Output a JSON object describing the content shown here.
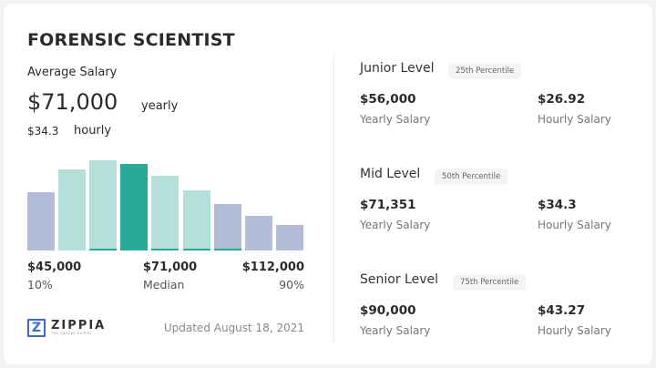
{
  "title": "FORENSIC SCIENTIST",
  "average_label": "Average Salary",
  "average_yearly": "$71,000",
  "yearly_label": "yearly",
  "average_hourly": "$34.3",
  "hourly_label": "hourly",
  "colors": {
    "low_high": "#b4bdd8",
    "mid": "#b5e0da",
    "median": "#2aa898"
  },
  "histogram": {
    "relative_heights": [
      64,
      89,
      99,
      95,
      82,
      66,
      51,
      38,
      28
    ],
    "bar_colors": [
      "low_high",
      "mid",
      "mid",
      "median",
      "mid",
      "mid",
      "low_high",
      "low_high",
      "low_high"
    ],
    "underline": [
      false,
      false,
      true,
      false,
      true,
      true,
      true,
      false,
      false
    ]
  },
  "range": {
    "low": "$45,000",
    "low_label": "10%",
    "median": "$71,000",
    "median_label": "Median",
    "high": "$112,000",
    "high_label": "90%"
  },
  "brand": {
    "name": "ZIPPIA",
    "tagline": "THE CAREER EXPERT"
  },
  "updated": "Updated August 18, 2021",
  "levels": [
    {
      "name": "Junior Level",
      "badge": "25th Percentile",
      "yearly": "$56,000",
      "yearly_label": "Yearly Salary",
      "hourly": "$26.92",
      "hourly_label": "Hourly Salary"
    },
    {
      "name": "Mid Level",
      "badge": "50th Percentile",
      "yearly": "$71,351",
      "yearly_label": "Yearly Salary",
      "hourly": "$34.3",
      "hourly_label": "Hourly Salary"
    },
    {
      "name": "Senior Level",
      "badge": "75th Percentile",
      "yearly": "$90,000",
      "yearly_label": "Yearly Salary",
      "hourly": "$43.27",
      "hourly_label": "Hourly Salary"
    }
  ]
}
